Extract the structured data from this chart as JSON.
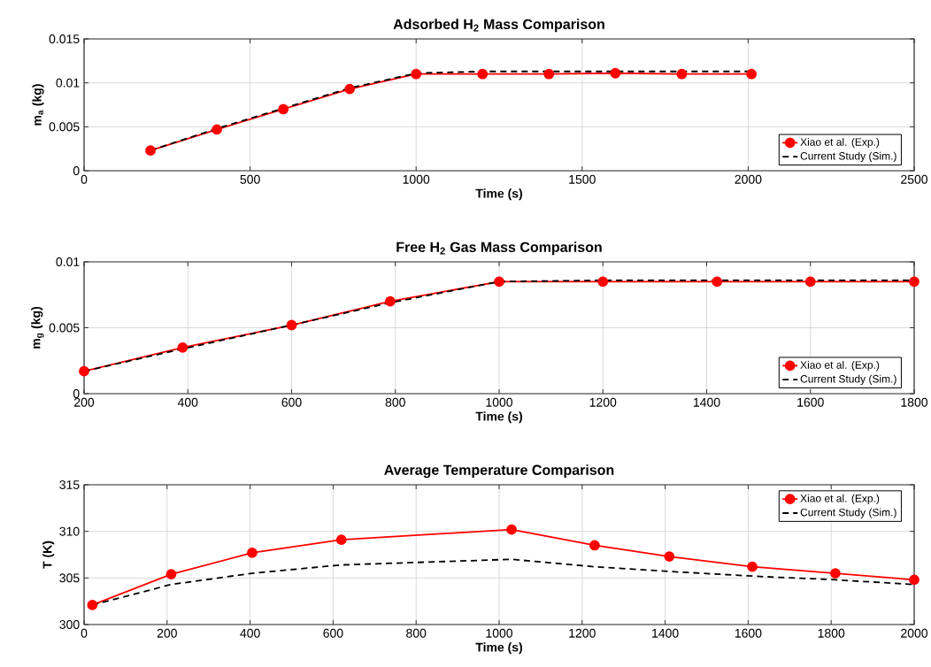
{
  "chart_data": [
    {
      "type": "line",
      "title": "Adsorbed H$_{2}$ Mass Comparison",
      "xlabel": "Time (s)",
      "ylabel": "m$_{a}$ (kg)",
      "xlim": [
        0,
        2500
      ],
      "xticks": [
        0,
        500,
        1000,
        1500,
        2000,
        2500
      ],
      "ylim": [
        0,
        0.015
      ],
      "yticks": [
        0,
        0.005,
        0.01,
        0.015
      ],
      "grid": true,
      "legend": "bottom right",
      "series": [
        {
          "name": "Xiao et al. (Exp.)",
          "color": "#ff0000",
          "marker": "circle",
          "line_style": "solid",
          "x": [
            200,
            400,
            600,
            800,
            1000,
            1200,
            1400,
            1600,
            1800,
            2010
          ],
          "values": [
            0.0023,
            0.0047,
            0.007,
            0.0093,
            0.011,
            0.011,
            0.011,
            0.0111,
            0.011,
            0.011
          ]
        },
        {
          "name": "Current Study (Sim.)",
          "color": "#000000",
          "marker": "none",
          "line_style": "dashed",
          "x": [
            200,
            400,
            600,
            800,
            1000,
            1200,
            1400,
            1600,
            1800,
            2010
          ],
          "values": [
            0.0023,
            0.0048,
            0.0071,
            0.0094,
            0.0111,
            0.0113,
            0.0113,
            0.0113,
            0.0113,
            0.0113
          ]
        }
      ]
    },
    {
      "type": "line",
      "title": "Free H$_{2}$ Gas Mass Comparison",
      "xlabel": "Time (s)",
      "ylabel": "m$_{g}$ (kg)",
      "xlim": [
        200,
        1800
      ],
      "xticks": [
        200,
        400,
        600,
        800,
        1000,
        1200,
        1400,
        1600,
        1800
      ],
      "ylim": [
        0,
        0.01
      ],
      "yticks": [
        0,
        0.005,
        0.01
      ],
      "grid": true,
      "legend": "bottom right",
      "series": [
        {
          "name": "Xiao et al. (Exp.)",
          "color": "#ff0000",
          "marker": "circle",
          "line_style": "solid",
          "x": [
            200,
            390,
            600,
            790,
            1000,
            1200,
            1420,
            1600,
            1800
          ],
          "values": [
            0.0017,
            0.0035,
            0.0052,
            0.007,
            0.0085,
            0.0085,
            0.0085,
            0.0085,
            0.0085
          ]
        },
        {
          "name": "Current Study (Sim.)",
          "color": "#000000",
          "marker": "none",
          "line_style": "dashed",
          "x": [
            200,
            390,
            600,
            790,
            1000,
            1200,
            1420,
            1600,
            1800
          ],
          "values": [
            0.0017,
            0.0034,
            0.0052,
            0.0069,
            0.0085,
            0.0086,
            0.0086,
            0.0086,
            0.0086
          ]
        }
      ]
    },
    {
      "type": "line",
      "title": "Average Temperature Comparison",
      "xlabel": "Time (s)",
      "ylabel": "T (K)",
      "xlim": [
        0,
        2000
      ],
      "xticks": [
        0,
        200,
        400,
        600,
        800,
        1000,
        1200,
        1400,
        1600,
        1800,
        2000
      ],
      "ylim": [
        300,
        315
      ],
      "yticks": [
        300,
        305,
        310,
        315
      ],
      "grid": true,
      "legend": "top right",
      "series": [
        {
          "name": "Xiao et al. (Exp.)",
          "color": "#ff0000",
          "marker": "circle",
          "line_style": "solid",
          "x": [
            20,
            210,
            405,
            620,
            1030,
            1230,
            1410,
            1610,
            1810,
            2000
          ],
          "values": [
            302.1,
            305.4,
            307.7,
            309.1,
            310.2,
            308.5,
            307.3,
            306.2,
            305.5,
            304.8
          ]
        },
        {
          "name": "Current Study (Sim.)",
          "color": "#000000",
          "marker": "none",
          "line_style": "dashed",
          "x": [
            20,
            210,
            405,
            620,
            1030,
            1230,
            1410,
            1610,
            1810,
            2000
          ],
          "values": [
            302.1,
            304.3,
            305.5,
            306.4,
            307.0,
            306.2,
            305.7,
            305.2,
            304.8,
            304.3
          ]
        }
      ]
    }
  ]
}
